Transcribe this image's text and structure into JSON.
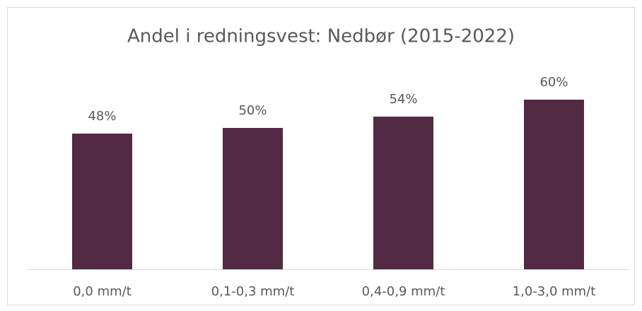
{
  "chart_data": {
    "type": "bar",
    "title": "Andel i redningsvest: Nedbør (2015-2022)",
    "categories": [
      "0,0 mm/t",
      "0,1-0,3 mm/t",
      "0,4-0,9 mm/t",
      "1,0-3,0 mm/t"
    ],
    "values": [
      48,
      50,
      54,
      60
    ],
    "value_labels": [
      "48%",
      "50%",
      "54%",
      "60%"
    ],
    "color": "#532a43"
  }
}
